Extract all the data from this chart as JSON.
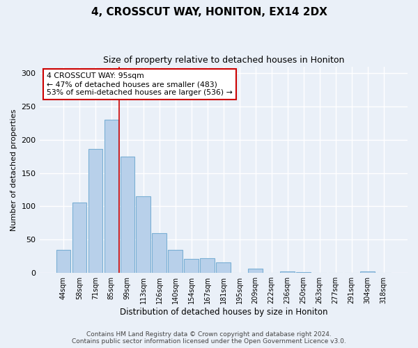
{
  "title1": "4, CROSSCUT WAY, HONITON, EX14 2DX",
  "title2": "Size of property relative to detached houses in Honiton",
  "xlabel": "Distribution of detached houses by size in Honiton",
  "ylabel": "Number of detached properties",
  "categories": [
    "44sqm",
    "58sqm",
    "71sqm",
    "85sqm",
    "99sqm",
    "113sqm",
    "126sqm",
    "140sqm",
    "154sqm",
    "167sqm",
    "181sqm",
    "195sqm",
    "209sqm",
    "222sqm",
    "236sqm",
    "250sqm",
    "263sqm",
    "277sqm",
    "291sqm",
    "304sqm",
    "318sqm"
  ],
  "values": [
    35,
    106,
    186,
    230,
    175,
    115,
    60,
    35,
    21,
    22,
    16,
    0,
    6,
    0,
    2,
    1,
    0,
    0,
    0,
    2,
    0
  ],
  "bar_color": "#b8d0ea",
  "bar_edge_color": "#7aafd4",
  "vline_color": "#cc0000",
  "annotation_text": "4 CROSSCUT WAY: 95sqm\n← 47% of detached houses are smaller (483)\n53% of semi-detached houses are larger (536) →",
  "annotation_box_color": "#ffffff",
  "annotation_box_edge": "#cc0000",
  "footer": "Contains HM Land Registry data © Crown copyright and database right 2024.\nContains public sector information licensed under the Open Government Licence v3.0.",
  "ylim": [
    0,
    310
  ],
  "yticks": [
    0,
    50,
    100,
    150,
    200,
    250,
    300
  ],
  "bg_color": "#eaf0f8",
  "grid_color": "#ffffff",
  "title1_fontsize": 11,
  "title2_fontsize": 9,
  "footer_fontsize": 6.5
}
